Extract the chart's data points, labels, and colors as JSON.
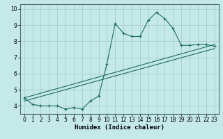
{
  "xlabel": "Humidex (Indice chaleur)",
  "xlim": [
    -0.5,
    23.5
  ],
  "ylim": [
    3.5,
    10.3
  ],
  "yticks": [
    4,
    5,
    6,
    7,
    8,
    9,
    10
  ],
  "xticks": [
    0,
    1,
    2,
    3,
    4,
    5,
    6,
    7,
    8,
    9,
    10,
    11,
    12,
    13,
    14,
    15,
    16,
    17,
    18,
    19,
    20,
    21,
    22,
    23
  ],
  "bg_color": "#c5e8e8",
  "grid_color": "#a8cccc",
  "line_color": "#1a6e62",
  "series_jagged": {
    "x": [
      0,
      1,
      2,
      3,
      4,
      5,
      6,
      7,
      8,
      9,
      10,
      11,
      12,
      13,
      14,
      15,
      16,
      17,
      18,
      19,
      20,
      21,
      22,
      23
    ],
    "y": [
      4.5,
      4.1,
      4.0,
      4.0,
      4.0,
      3.8,
      3.9,
      3.8,
      4.3,
      4.6,
      6.6,
      9.1,
      8.5,
      8.3,
      8.3,
      9.3,
      9.8,
      9.4,
      8.8,
      7.75,
      7.75,
      7.8,
      7.8,
      7.7
    ]
  },
  "series_line1": {
    "x": [
      0,
      23
    ],
    "y": [
      4.5,
      7.8
    ]
  },
  "series_line2": {
    "x": [
      0,
      23
    ],
    "y": [
      4.3,
      7.55
    ]
  }
}
